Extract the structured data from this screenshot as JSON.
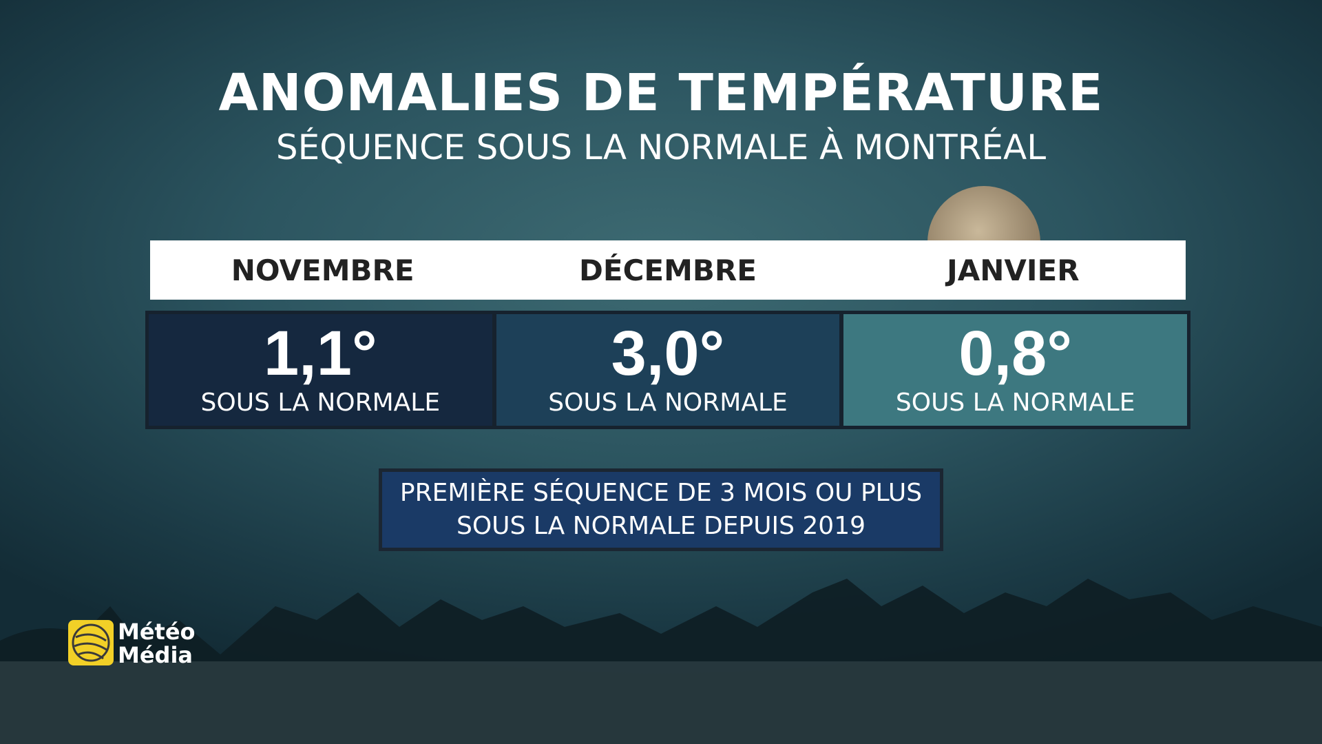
{
  "header": {
    "title": "ANOMALIES DE TEMPÉRATURE",
    "subtitle": "SÉQUENCE SOUS LA NORMALE À MONTRÉAL"
  },
  "months": [
    {
      "name": "NOVEMBRE",
      "value": "1,1°",
      "label": "SOUS LA NORMALE"
    },
    {
      "name": "DÉCEMBRE",
      "value": "3,0°",
      "label": "SOUS LA NORMALE"
    },
    {
      "name": "JANVIER",
      "value": "0,8°",
      "label": "SOUS LA NORMALE"
    }
  ],
  "note": {
    "lines": [
      "PREMIÈRE SÉQUENCE DE 3 MOIS OU PLUS",
      "SOUS LA NORMALE DEPUIS 2019"
    ]
  },
  "logo": {
    "lines": [
      "Météo",
      "Média"
    ]
  }
}
